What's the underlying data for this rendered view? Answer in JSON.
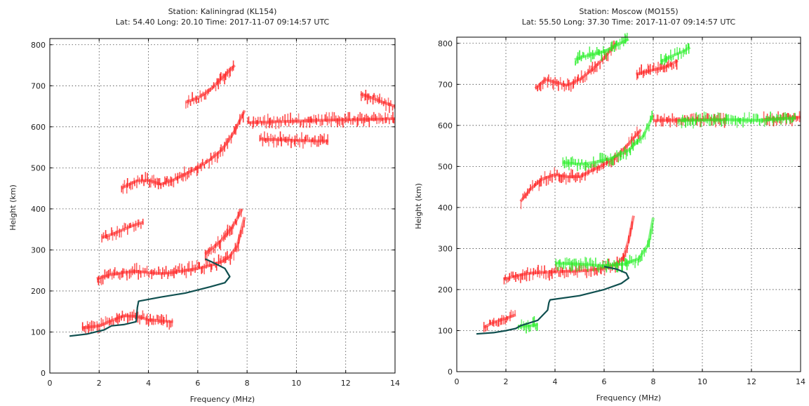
{
  "chart_data": [
    {
      "type": "scatter",
      "title": "Station: Kaliningrad (KL154)",
      "subtitle": "Lat: 54.40 Long: 20.10 Time: 2017-11-07 09:14:57 UTC",
      "xlabel": "Frequency (MHz)",
      "ylabel": "Height (km)",
      "xlim": [
        0,
        14
      ],
      "ylim": [
        0,
        815
      ],
      "xticks": [
        0,
        2,
        4,
        6,
        8,
        10,
        12,
        14
      ],
      "yticks": [
        0,
        100,
        200,
        300,
        400,
        500,
        600,
        700,
        800
      ],
      "grid": true,
      "colors": {
        "o_trace": "#ff1f1f",
        "x_trace": "#22ee22",
        "profile": "#0f4f4f"
      },
      "series": [
        {
          "kind": "trace",
          "color": "o_trace",
          "x": [
            1.3,
            2.0,
            2.5,
            3.0,
            3.5,
            4.0,
            4.5,
            5.0
          ],
          "y": [
            110,
            115,
            128,
            140,
            138,
            130,
            127,
            125
          ]
        },
        {
          "kind": "trace",
          "color": "o_trace",
          "x": [
            1.9,
            2.5,
            3.0,
            3.5,
            4.0,
            4.5,
            5.0,
            5.5,
            6.0,
            6.5,
            7.0,
            7.3,
            7.6,
            7.9
          ],
          "y": [
            230,
            240,
            245,
            248,
            245,
            242,
            245,
            250,
            255,
            262,
            272,
            285,
            310,
            380
          ]
        },
        {
          "kind": "trace",
          "color": "o_trace",
          "x": [
            6.3,
            6.6,
            6.9,
            7.2,
            7.5,
            7.8
          ],
          "y": [
            290,
            305,
            320,
            340,
            365,
            400
          ]
        },
        {
          "kind": "trace",
          "color": "o_trace",
          "x": [
            2.1,
            2.6,
            3.0,
            3.4,
            3.8
          ],
          "y": [
            330,
            340,
            350,
            360,
            368
          ]
        },
        {
          "kind": "trace",
          "color": "o_trace",
          "x": [
            2.9,
            3.5,
            4.0,
            4.5,
            5.0,
            5.5,
            6.0,
            6.5,
            7.0,
            7.5,
            7.9
          ],
          "y": [
            450,
            468,
            470,
            460,
            470,
            485,
            500,
            520,
            545,
            590,
            640
          ]
        },
        {
          "kind": "trace",
          "color": "o_trace",
          "x": [
            8.0,
            9.0,
            10.0,
            11.0,
            12.0,
            13.0,
            14.0
          ],
          "y": [
            610,
            612,
            614,
            616,
            617,
            618,
            620
          ]
        },
        {
          "kind": "trace",
          "color": "o_trace",
          "x": [
            8.5,
            9.5,
            10.5,
            11.3
          ],
          "y": [
            570,
            568,
            566,
            565
          ]
        },
        {
          "kind": "trace",
          "color": "o_trace",
          "x": [
            5.5,
            6.0,
            6.5,
            7.0,
            7.5
          ],
          "y": [
            660,
            670,
            690,
            720,
            750
          ]
        },
        {
          "kind": "trace",
          "color": "o_trace",
          "x": [
            12.6,
            13.0,
            13.5,
            14.0
          ],
          "y": [
            680,
            672,
            660,
            650
          ]
        },
        {
          "kind": "profile",
          "color": "profile",
          "x": [
            0.8,
            1.5,
            2.2,
            2.5,
            3.0,
            3.5,
            3.55,
            3.6,
            4.5,
            5.5,
            6.5,
            7.1,
            7.3,
            7.1,
            6.6,
            6.3
          ],
          "y": [
            90,
            95,
            105,
            115,
            118,
            125,
            160,
            175,
            185,
            195,
            210,
            220,
            235,
            255,
            270,
            278
          ]
        }
      ]
    },
    {
      "type": "scatter",
      "title": "Station: Moscow (MO155)",
      "subtitle": "Lat: 55.50 Long: 37.30 Time: 2017-11-07 09:14:57 UTC",
      "xlabel": "Frequency (MHz)",
      "ylabel": "Height (km)",
      "xlim": [
        0,
        14
      ],
      "ylim": [
        0,
        815
      ],
      "xticks": [
        0,
        2,
        4,
        6,
        8,
        10,
        12,
        14
      ],
      "yticks": [
        0,
        100,
        200,
        300,
        400,
        500,
        600,
        700,
        800
      ],
      "grid": true,
      "colors": {
        "o_trace": "#ff1f1f",
        "x_trace": "#22ee22",
        "profile": "#0f4f4f"
      },
      "series": [
        {
          "kind": "trace",
          "color": "o_trace",
          "x": [
            1.1,
            1.5,
            2.0,
            2.4
          ],
          "y": [
            108,
            120,
            130,
            138
          ]
        },
        {
          "kind": "trace",
          "color": "x_trace",
          "x": [
            2.5,
            3.0,
            3.3
          ],
          "y": [
            110,
            112,
            116
          ]
        },
        {
          "kind": "trace",
          "color": "o_trace",
          "x": [
            1.9,
            2.5,
            3.0,
            3.5,
            4.0,
            4.5,
            5.0,
            5.5,
            6.0,
            6.5,
            6.8,
            7.0,
            7.2
          ],
          "y": [
            225,
            235,
            240,
            242,
            243,
            245,
            245,
            248,
            252,
            262,
            280,
            320,
            380
          ]
        },
        {
          "kind": "trace",
          "color": "x_trace",
          "x": [
            4.0,
            5.0,
            6.0,
            6.8,
            7.4,
            7.8,
            8.0
          ],
          "y": [
            265,
            262,
            258,
            262,
            275,
            310,
            375
          ]
        },
        {
          "kind": "trace",
          "color": "o_trace",
          "x": [
            2.6,
            3.0,
            3.5,
            4.0,
            4.5,
            5.0,
            5.5,
            6.0,
            6.5,
            7.0,
            7.5
          ],
          "y": [
            415,
            445,
            470,
            480,
            475,
            475,
            490,
            505,
            525,
            555,
            590
          ]
        },
        {
          "kind": "trace",
          "color": "x_trace",
          "x": [
            4.3,
            5.0,
            5.6,
            6.3,
            7.0,
            7.6,
            8.0
          ],
          "y": [
            510,
            505,
            510,
            520,
            540,
            575,
            625
          ]
        },
        {
          "kind": "trace",
          "color": "o_trace",
          "x": [
            3.2,
            3.6,
            4.0,
            4.5,
            5.0,
            5.5,
            6.0,
            6.5
          ],
          "y": [
            690,
            712,
            705,
            698,
            712,
            735,
            765,
            800
          ]
        },
        {
          "kind": "trace",
          "color": "x_trace",
          "x": [
            4.8,
            5.3,
            6.0,
            6.5,
            7.0
          ],
          "y": [
            760,
            770,
            780,
            795,
            810
          ]
        },
        {
          "kind": "trace",
          "color": "o_trace",
          "x": [
            7.3,
            8.0,
            8.5,
            9.0
          ],
          "y": [
            725,
            735,
            742,
            758
          ]
        },
        {
          "kind": "trace",
          "color": "x_trace",
          "x": [
            8.3,
            8.8,
            9.2,
            9.5
          ],
          "y": [
            755,
            770,
            780,
            790
          ]
        },
        {
          "kind": "trace",
          "color": "o_trace",
          "x": [
            8.0,
            9.0,
            10.0,
            11.0
          ],
          "y": [
            612,
            613,
            614,
            614
          ]
        },
        {
          "kind": "trace",
          "color": "o_trace",
          "x": [
            12.5,
            13.0,
            13.5,
            14.0
          ],
          "y": [
            615,
            616,
            618,
            620
          ]
        },
        {
          "kind": "trace",
          "color": "x_trace",
          "x": [
            9.0,
            10.0,
            11.0,
            12.3,
            13.0,
            13.8
          ],
          "y": [
            612,
            613,
            614,
            612,
            615,
            618
          ]
        },
        {
          "kind": "profile",
          "color": "profile",
          "x": [
            0.8,
            1.5,
            2.0,
            2.4,
            2.6,
            3.3,
            3.7,
            3.75,
            3.8,
            5.0,
            6.0,
            6.7,
            7.0,
            6.9,
            6.5,
            6.0
          ],
          "y": [
            92,
            95,
            100,
            105,
            112,
            125,
            150,
            168,
            175,
            185,
            200,
            215,
            228,
            240,
            250,
            256
          ]
        }
      ]
    }
  ]
}
